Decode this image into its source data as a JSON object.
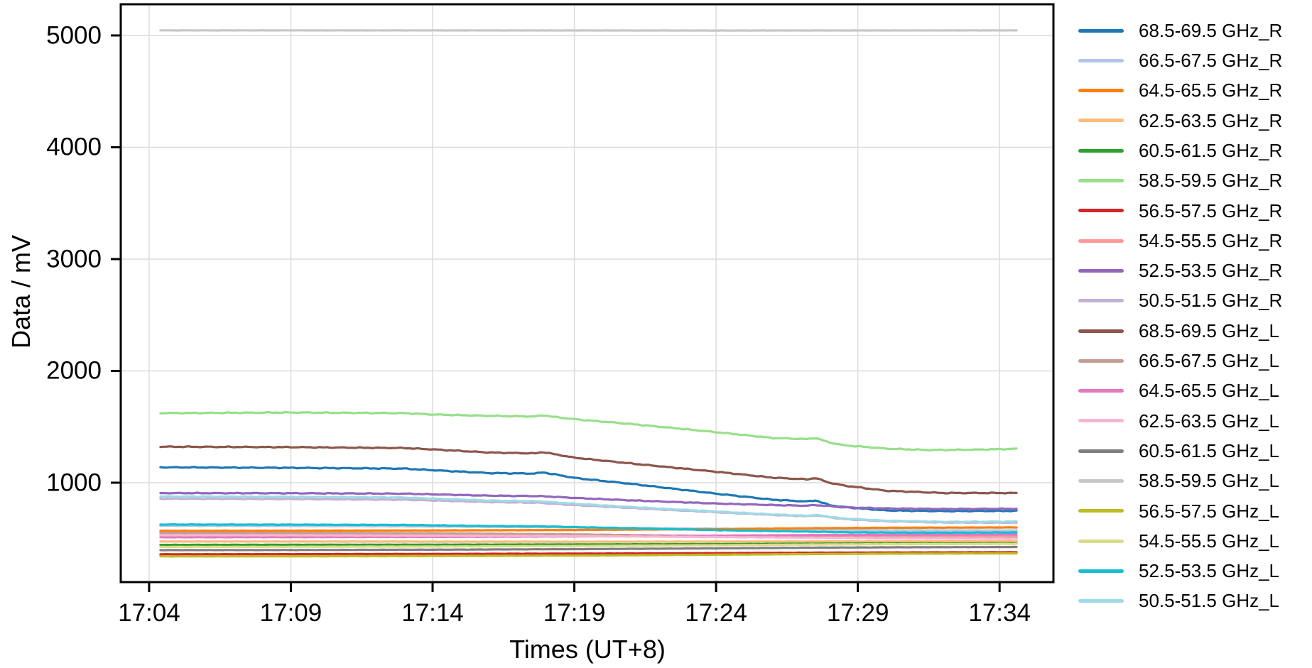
{
  "chart_data": {
    "type": "line",
    "title": "",
    "xlabel": "Times (UT+8)",
    "ylabel": "Data / mV",
    "grid": true,
    "legend_position": "right-outside",
    "x_tick_labels": [
      "17:04",
      "17:09",
      "17:14",
      "17:19",
      "17:24",
      "17:29",
      "17:34"
    ],
    "x_tick_minutes": [
      4,
      9,
      14,
      19,
      24,
      29,
      34
    ],
    "y_tick_labels": [
      "1000",
      "2000",
      "3000",
      "4000",
      "5000"
    ],
    "y_ticks": [
      1000,
      2000,
      3000,
      4000,
      5000
    ],
    "xlim_minutes": [
      3.0,
      35.9
    ],
    "ylim": [
      111,
      5279
    ],
    "x_data_range_minutes": [
      4.4,
      34.6
    ],
    "series": [
      {
        "name": "68.5-69.5 GHz_R",
        "color": "#1f77b4",
        "wiggle": 5,
        "points": [
          [
            4.4,
            1138
          ],
          [
            9,
            1133
          ],
          [
            13,
            1126
          ],
          [
            14,
            1112
          ],
          [
            16,
            1086
          ],
          [
            17.6,
            1082
          ],
          [
            17.9,
            1092
          ],
          [
            18.3,
            1075
          ],
          [
            19,
            1043
          ],
          [
            21,
            990
          ],
          [
            24,
            902
          ],
          [
            26,
            848
          ],
          [
            27.2,
            832
          ],
          [
            27.5,
            842
          ],
          [
            28,
            800
          ],
          [
            28.5,
            782
          ],
          [
            30,
            752
          ],
          [
            32,
            746
          ],
          [
            34.6,
            748
          ]
        ]
      },
      {
        "name": "66.5-67.5 GHz_R",
        "color": "#aec7e8",
        "wiggle": 2,
        "points": [
          [
            4.4,
            615
          ],
          [
            9,
            613
          ],
          [
            14,
            609
          ],
          [
            19,
            600
          ],
          [
            24,
            588
          ],
          [
            27.4,
            580
          ],
          [
            30,
            574
          ],
          [
            34.6,
            573
          ]
        ]
      },
      {
        "name": "64.5-65.5 GHz_R",
        "color": "#ff7f0e",
        "wiggle": 1.5,
        "points": [
          [
            4.4,
            570
          ],
          [
            9,
            571
          ],
          [
            14,
            573
          ],
          [
            19,
            577
          ],
          [
            24,
            585
          ],
          [
            27.4,
            593
          ],
          [
            30,
            597
          ],
          [
            34.6,
            600
          ]
        ]
      },
      {
        "name": "62.5-63.5 GHz_R",
        "color": "#ffbb78",
        "wiggle": 1.5,
        "points": [
          [
            4.4,
            474
          ],
          [
            9,
            474
          ],
          [
            14,
            473
          ],
          [
            19,
            472
          ],
          [
            24,
            473
          ],
          [
            27.4,
            475
          ],
          [
            30,
            475
          ],
          [
            34.6,
            477
          ]
        ]
      },
      {
        "name": "60.5-61.5 GHz_R",
        "color": "#2ca02c",
        "wiggle": 1.2,
        "points": [
          [
            4.4,
            444
          ],
          [
            9,
            445
          ],
          [
            14,
            446
          ],
          [
            19,
            448
          ],
          [
            24,
            451
          ],
          [
            27.4,
            455
          ],
          [
            30,
            457
          ],
          [
            34.6,
            459
          ]
        ]
      },
      {
        "name": "58.5-59.5 GHz_R",
        "color": "#98df8a",
        "wiggle": 5,
        "points": [
          [
            4.4,
            1622
          ],
          [
            9,
            1628
          ],
          [
            13,
            1622
          ],
          [
            14,
            1610
          ],
          [
            16,
            1598
          ],
          [
            17.6,
            1592
          ],
          [
            17.9,
            1604
          ],
          [
            18.3,
            1588
          ],
          [
            19,
            1568
          ],
          [
            21,
            1525
          ],
          [
            24,
            1452
          ],
          [
            26,
            1400
          ],
          [
            27.2,
            1390
          ],
          [
            27.5,
            1400
          ],
          [
            28,
            1360
          ],
          [
            28.5,
            1335
          ],
          [
            30,
            1305
          ],
          [
            31.5,
            1292
          ],
          [
            33,
            1295
          ],
          [
            34.6,
            1303
          ]
        ]
      },
      {
        "name": "56.5-57.5 GHz_R",
        "color": "#d62728",
        "wiggle": 1.2,
        "points": [
          [
            4.4,
            360
          ],
          [
            9,
            361
          ],
          [
            14,
            363
          ],
          [
            19,
            366
          ],
          [
            24,
            370
          ],
          [
            27.4,
            374
          ],
          [
            30,
            376
          ],
          [
            34.6,
            378
          ]
        ]
      },
      {
        "name": "54.5-55.5 GHz_R",
        "color": "#ff9896",
        "wiggle": 2,
        "points": [
          [
            4.4,
            537
          ],
          [
            9,
            536
          ],
          [
            14,
            533
          ],
          [
            19,
            529
          ],
          [
            24,
            524
          ],
          [
            27.4,
            521
          ],
          [
            30,
            519
          ],
          [
            34.6,
            518
          ]
        ]
      },
      {
        "name": "52.5-53.5 GHz_R",
        "color": "#9467bd",
        "wiggle": 4,
        "points": [
          [
            4.4,
            907
          ],
          [
            9,
            906
          ],
          [
            13,
            902
          ],
          [
            14,
            896
          ],
          [
            16,
            884
          ],
          [
            17.8,
            880
          ],
          [
            19,
            864
          ],
          [
            21,
            842
          ],
          [
            24,
            814
          ],
          [
            26,
            800
          ],
          [
            27.2,
            794
          ],
          [
            27.5,
            800
          ],
          [
            28.5,
            780
          ],
          [
            30,
            770
          ],
          [
            32,
            765
          ],
          [
            34.6,
            767
          ]
        ]
      },
      {
        "name": "50.5-51.5 GHz_R",
        "color": "#c5b0d5",
        "wiggle": 4,
        "points": [
          [
            4.4,
            857
          ],
          [
            9,
            854
          ],
          [
            13,
            848
          ],
          [
            14,
            841
          ],
          [
            16,
            827
          ],
          [
            17.8,
            820
          ],
          [
            19,
            800
          ],
          [
            21,
            774
          ],
          [
            24,
            736
          ],
          [
            26,
            712
          ],
          [
            27.2,
            700
          ],
          [
            27.5,
            708
          ],
          [
            28.5,
            675
          ],
          [
            30,
            655
          ],
          [
            32,
            644
          ],
          [
            34.6,
            642
          ]
        ]
      },
      {
        "name": "68.5-69.5 GHz_L",
        "color": "#8c564b",
        "wiggle": 5,
        "points": [
          [
            4.4,
            1322
          ],
          [
            9,
            1318
          ],
          [
            13,
            1310
          ],
          [
            14,
            1298
          ],
          [
            16,
            1270
          ],
          [
            17.6,
            1262
          ],
          [
            17.9,
            1274
          ],
          [
            18.3,
            1255
          ],
          [
            19,
            1224
          ],
          [
            21,
            1172
          ],
          [
            24,
            1098
          ],
          [
            26,
            1045
          ],
          [
            27.2,
            1030
          ],
          [
            27.5,
            1042
          ],
          [
            28,
            1000
          ],
          [
            28.5,
            975
          ],
          [
            30,
            928
          ],
          [
            32,
            908
          ],
          [
            34.6,
            908
          ]
        ]
      },
      {
        "name": "66.5-67.5 GHz_L",
        "color": "#c49c94",
        "wiggle": 2,
        "points": [
          [
            4.4,
            553
          ],
          [
            9,
            551
          ],
          [
            14,
            548
          ],
          [
            19,
            538
          ],
          [
            24,
            522
          ],
          [
            27.4,
            512
          ],
          [
            30,
            507
          ],
          [
            34.6,
            505
          ]
        ]
      },
      {
        "name": "64.5-65.5 GHz_L",
        "color": "#e377c2",
        "wiggle": 1.5,
        "points": [
          [
            4.4,
            512
          ],
          [
            9,
            513
          ],
          [
            14,
            515
          ],
          [
            19,
            519
          ],
          [
            24,
            526
          ],
          [
            27.4,
            532
          ],
          [
            30,
            534
          ],
          [
            34.6,
            536
          ]
        ]
      },
      {
        "name": "62.5-63.5 GHz_L",
        "color": "#f7b6d2",
        "wiggle": 2,
        "points": [
          [
            4.4,
            531
          ],
          [
            9,
            530
          ],
          [
            14,
            527
          ],
          [
            19,
            522
          ],
          [
            24,
            514
          ],
          [
            27.4,
            508
          ],
          [
            30,
            503
          ],
          [
            34.6,
            500
          ]
        ]
      },
      {
        "name": "60.5-61.5 GHz_L",
        "color": "#7f7f7f",
        "wiggle": 1.2,
        "points": [
          [
            4.4,
            397
          ],
          [
            9,
            398
          ],
          [
            14,
            401
          ],
          [
            19,
            406
          ],
          [
            24,
            413
          ],
          [
            27.4,
            419
          ],
          [
            30,
            422
          ],
          [
            34.6,
            425
          ]
        ]
      },
      {
        "name": "58.5-59.5 GHz_L",
        "color": "#c7c7c7",
        "wiggle": 0.8,
        "points": [
          [
            4.4,
            5045
          ],
          [
            14,
            5045
          ],
          [
            24,
            5044
          ],
          [
            34.6,
            5045
          ]
        ]
      },
      {
        "name": "56.5-57.5 GHz_L",
        "color": "#bcbd22",
        "wiggle": 1.2,
        "points": [
          [
            4.4,
            341
          ],
          [
            9,
            342
          ],
          [
            14,
            344
          ],
          [
            19,
            348
          ],
          [
            24,
            356
          ],
          [
            27.4,
            362
          ],
          [
            30,
            365
          ],
          [
            34.6,
            368
          ]
        ]
      },
      {
        "name": "54.5-55.5 GHz_L",
        "color": "#dbdb8d",
        "wiggle": 1.5,
        "points": [
          [
            4.4,
            426
          ],
          [
            9,
            427
          ],
          [
            14,
            429
          ],
          [
            19,
            434
          ],
          [
            24,
            441
          ],
          [
            27.4,
            447
          ],
          [
            30,
            450
          ],
          [
            34.6,
            453
          ]
        ]
      },
      {
        "name": "52.5-53.5 GHz_L",
        "color": "#17becf",
        "wiggle": 2.5,
        "points": [
          [
            4.4,
            626
          ],
          [
            9,
            625
          ],
          [
            13,
            622
          ],
          [
            14,
            619
          ],
          [
            16,
            613
          ],
          [
            17.8,
            610
          ],
          [
            19,
            603
          ],
          [
            21,
            592
          ],
          [
            24,
            576
          ],
          [
            26,
            567
          ],
          [
            27.4,
            562
          ],
          [
            28.5,
            557
          ],
          [
            30,
            554
          ],
          [
            32,
            553
          ],
          [
            34.6,
            555
          ]
        ]
      },
      {
        "name": "50.5-51.5 GHz_L",
        "color": "#9edae5",
        "wiggle": 4,
        "points": [
          [
            4.4,
            877
          ],
          [
            9,
            874
          ],
          [
            13,
            867
          ],
          [
            14,
            858
          ],
          [
            16,
            840
          ],
          [
            17.8,
            833
          ],
          [
            19,
            812
          ],
          [
            21,
            782
          ],
          [
            24,
            742
          ],
          [
            26,
            716
          ],
          [
            27.2,
            704
          ],
          [
            27.5,
            712
          ],
          [
            28.5,
            680
          ],
          [
            30,
            660
          ],
          [
            32,
            650
          ],
          [
            34.6,
            652
          ]
        ]
      }
    ]
  },
  "colors": {
    "background": "#ffffff",
    "axis": "#000000",
    "grid": "#dcdcdc",
    "tick": "#000000",
    "text": "#000000"
  }
}
